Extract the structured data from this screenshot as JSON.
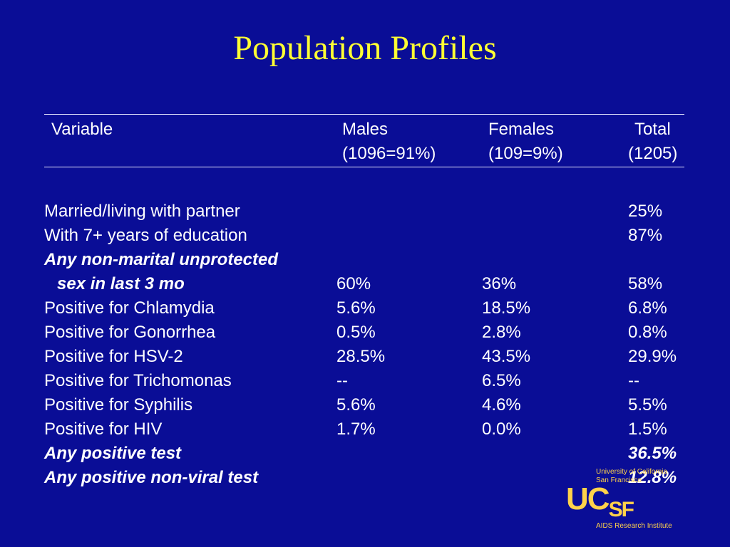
{
  "title": "Population Profiles",
  "headers": {
    "variable": "Variable",
    "males": "Males",
    "males_n": "(1096=91%)",
    "females": "Females",
    "females_n": "(109=9%)",
    "total": "Total",
    "total_n": "(1205)"
  },
  "rows": [
    {
      "label": "Married/living with partner",
      "males": "",
      "females": "",
      "total": "25%",
      "emph": false
    },
    {
      "label": "With 7+ years of education",
      "males": "",
      "females": "",
      "total": "87%",
      "emph": false
    },
    {
      "label": "Any non-marital unprotected",
      "males": "",
      "females": "",
      "total": "",
      "emph": true
    },
    {
      "label": "sex in last 3 mo",
      "males": "60%",
      "females": "36%",
      "total": "58%",
      "emph": true,
      "indent": true
    },
    {
      "label": "Positive for Chlamydia",
      "males": "5.6%",
      "females": "18.5%",
      "total": "6.8%",
      "emph": false
    },
    {
      "label": "Positive for Gonorrhea",
      "males": "0.5%",
      "females": "2.8%",
      "total": "0.8%",
      "emph": false
    },
    {
      "label": "Positive for HSV-2",
      "males": "28.5%",
      "females": "43.5%",
      "total": "29.9%",
      "emph": false
    },
    {
      "label": "Positive for Trichomonas",
      "males": "--",
      "females": "6.5%",
      "total": "--",
      "emph": false
    },
    {
      "label": "Positive for Syphilis",
      "males": "5.6%",
      "females": "4.6%",
      "total": "5.5%",
      "emph": false
    },
    {
      "label": "Positive for HIV",
      "males": "1.7%",
      "females": "0.0%",
      "total": "1.5%",
      "emph": false
    },
    {
      "label": "Any positive test",
      "males": "",
      "females": "",
      "total": "36.5%",
      "emph": true
    },
    {
      "label": "Any positive non-viral test",
      "males": "",
      "females": "",
      "total": "12.8%",
      "emph": true
    }
  ],
  "logo": {
    "line1": "University of California",
    "line2": "San Francisco",
    "uc": "UC",
    "s": "S",
    "f": "F",
    "institute": "AIDS Research Institute"
  },
  "colors": {
    "background": "#0a0d96",
    "title": "#ffff33",
    "text": "#ffffff",
    "logo": "#ffd24a"
  }
}
